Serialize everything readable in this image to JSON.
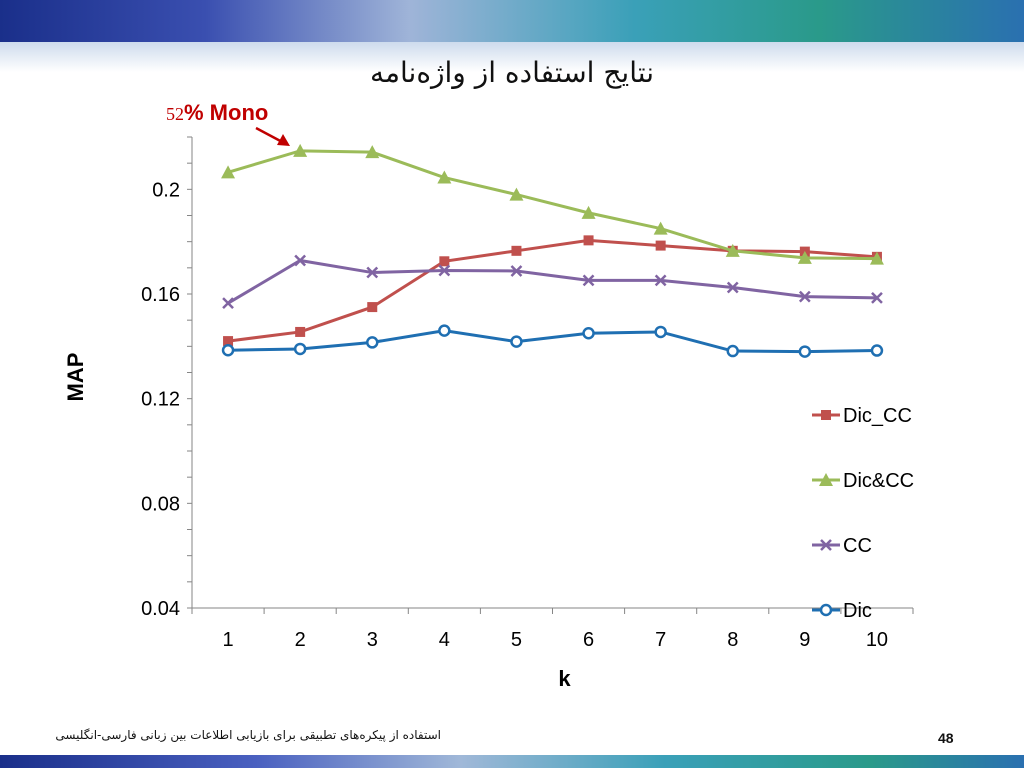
{
  "slide": {
    "title": "نتایج استفاده از واژه‌نامه",
    "annotation_number": "52",
    "annotation_text": "% Mono",
    "footer": "استفاده از پیکره‌های تطبیقی برای بازیابی اطلاعات بین زبانی فارسی-انگلیسی",
    "page_number": "48"
  },
  "colors": {
    "annotation": "#c00000",
    "Dic_CC": "#c0504d",
    "Dic&CC": "#9bbb59",
    "CC": "#8064a2",
    "Dic": "#1f6fb2"
  },
  "chart_data": {
    "type": "line",
    "title": "",
    "xlabel": "k",
    "ylabel": "MAP",
    "categories": [
      "1",
      "2",
      "3",
      "4",
      "5",
      "6",
      "7",
      "8",
      "9",
      "10"
    ],
    "ylim": [
      0.04,
      0.22
    ],
    "yticks": [
      "0.04",
      "0.08",
      "0.12",
      "0.16",
      "0.2"
    ],
    "grid": false,
    "legend": "right",
    "series": [
      {
        "name": "Dic_CC",
        "marker": "square",
        "values": [
          0.142,
          0.1455,
          0.155,
          0.1725,
          0.1765,
          0.1805,
          0.1785,
          0.1765,
          0.1762,
          0.1742
        ]
      },
      {
        "name": "Dic&CC",
        "marker": "triangle",
        "values": [
          0.2065,
          0.2147,
          0.2142,
          0.2045,
          0.198,
          0.191,
          0.185,
          0.1765,
          0.1738,
          0.1735
        ]
      },
      {
        "name": "CC",
        "marker": "x",
        "values": [
          0.1565,
          0.1728,
          0.1682,
          0.169,
          0.1688,
          0.1652,
          0.1652,
          0.1625,
          0.159,
          0.1585
        ]
      },
      {
        "name": "Dic",
        "marker": "circle",
        "values": [
          0.1385,
          0.139,
          0.1415,
          0.146,
          0.1418,
          0.145,
          0.1455,
          0.1382,
          0.138,
          0.1384
        ]
      }
    ]
  }
}
